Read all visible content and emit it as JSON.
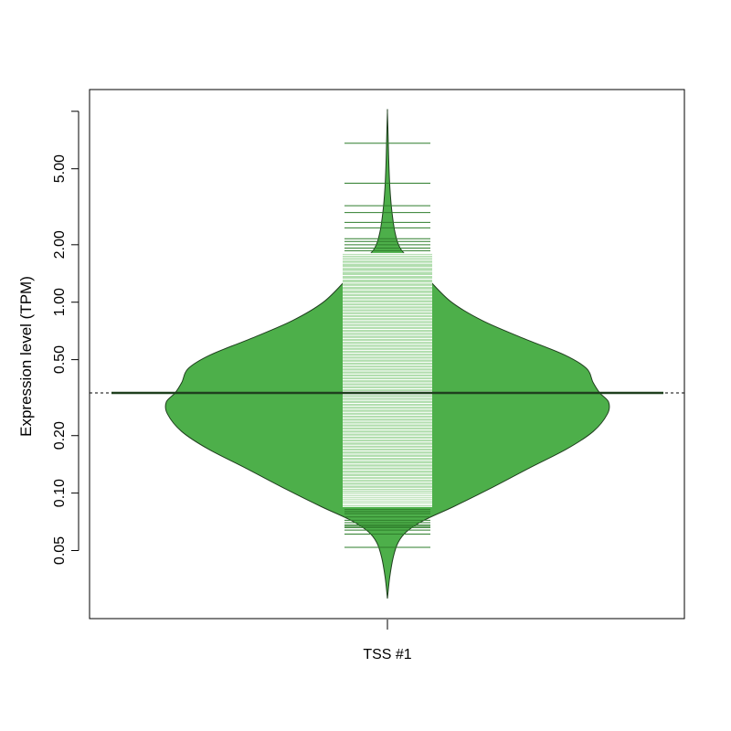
{
  "chart_data": {
    "type": "violin",
    "title": "",
    "xlabel": "",
    "ylabel": "Expression level (TPM)",
    "categories": [
      "TSS #1"
    ],
    "y_scale": "log",
    "ylim": [
      0.022,
      13
    ],
    "yticks": [
      0.05,
      0.1,
      0.2,
      0.5,
      1.0,
      2.0,
      5.0,
      10
    ],
    "ytick_labels": [
      "0.05",
      "0.10",
      "0.20",
      "0.50",
      "1.00",
      "2.00",
      "5.00",
      ""
    ],
    "grid": false,
    "legend": "none",
    "reference_line_y": 0.335,
    "series": [
      {
        "category": "TSS #1",
        "median": 0.335,
        "min": 0.028,
        "max": 9.9,
        "density_profile": [
          {
            "y": 0.028,
            "w": 0.0
          },
          {
            "y": 0.036,
            "w": 0.01
          },
          {
            "y": 0.046,
            "w": 0.026
          },
          {
            "y": 0.055,
            "w": 0.048
          },
          {
            "y": 0.063,
            "w": 0.088
          },
          {
            "y": 0.072,
            "w": 0.165
          },
          {
            "y": 0.085,
            "w": 0.3
          },
          {
            "y": 0.105,
            "w": 0.46
          },
          {
            "y": 0.135,
            "w": 0.64
          },
          {
            "y": 0.17,
            "w": 0.81
          },
          {
            "y": 0.21,
            "w": 0.93
          },
          {
            "y": 0.26,
            "w": 0.995
          },
          {
            "y": 0.3,
            "w": 1.0
          },
          {
            "y": 0.335,
            "w": 0.96
          },
          {
            "y": 0.38,
            "w": 0.93
          },
          {
            "y": 0.45,
            "w": 0.9
          },
          {
            "y": 0.53,
            "w": 0.8
          },
          {
            "y": 0.65,
            "w": 0.61
          },
          {
            "y": 0.8,
            "w": 0.43
          },
          {
            "y": 1.0,
            "w": 0.29
          },
          {
            "y": 1.3,
            "w": 0.19
          },
          {
            "y": 1.6,
            "w": 0.12
          },
          {
            "y": 1.9,
            "w": 0.06
          },
          {
            "y": 2.3,
            "w": 0.035
          },
          {
            "y": 3.0,
            "w": 0.02
          },
          {
            "y": 4.0,
            "w": 0.011
          },
          {
            "y": 5.5,
            "w": 0.006
          },
          {
            "y": 7.5,
            "w": 0.003
          },
          {
            "y": 9.9,
            "w": 0.0
          }
        ],
        "points": [
          0.052,
          0.061,
          0.064,
          0.066,
          0.067,
          0.068,
          0.07,
          0.072,
          0.075,
          0.078,
          0.08,
          0.082,
          0.085,
          0.087,
          0.088,
          0.09,
          0.092,
          0.094,
          0.096,
          0.098,
          0.1,
          0.103,
          0.106,
          0.11,
          0.114,
          0.118,
          0.122,
          0.127,
          0.132,
          0.137,
          0.142,
          0.148,
          0.154,
          0.16,
          0.166,
          0.172,
          0.178,
          0.185,
          0.192,
          0.199,
          0.206,
          0.214,
          0.222,
          0.23,
          0.238,
          0.247,
          0.256,
          0.265,
          0.275,
          0.285,
          0.295,
          0.306,
          0.317,
          0.328,
          0.34,
          0.352,
          0.365,
          0.378,
          0.392,
          0.406,
          0.421,
          0.436,
          0.452,
          0.468,
          0.485,
          0.503,
          0.521,
          0.54,
          0.56,
          0.58,
          0.601,
          0.623,
          0.646,
          0.67,
          0.694,
          0.72,
          0.746,
          0.773,
          0.801,
          0.83,
          0.86,
          0.891,
          0.923,
          0.956,
          0.99,
          1.03,
          1.07,
          1.11,
          1.16,
          1.21,
          1.26,
          1.32,
          1.38,
          1.45,
          1.52,
          1.6,
          1.66,
          1.71,
          1.76,
          1.8,
          1.86,
          1.92,
          2.0,
          2.08,
          2.15,
          2.45,
          2.62,
          2.95,
          3.2,
          4.2,
          6.8
        ]
      }
    ],
    "colors": {
      "violin_fill": "#4daf4a",
      "violin_stroke": "#1f3f1e",
      "bean_band": "#b2deaf",
      "bean_line": "#ffffff",
      "bean_tail_line": "#2e7d2b",
      "median_line": "#1f3f1e",
      "reference_line": "#000000",
      "axis": "#000000"
    }
  }
}
